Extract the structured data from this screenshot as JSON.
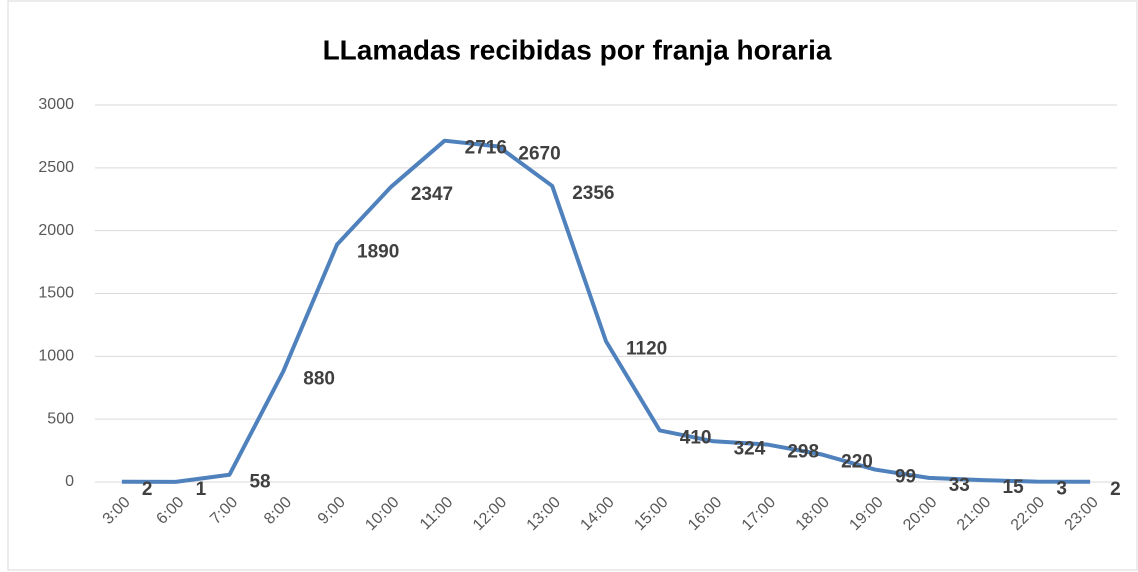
{
  "chart_data": {
    "type": "line",
    "title": "LLamadas recibidas por franja horaria",
    "categories": [
      "3:00",
      "6:00",
      "7:00",
      "8:00",
      "9:00",
      "10:00",
      "11:00",
      "12:00",
      "13:00",
      "14:00",
      "15:00",
      "16:00",
      "17:00",
      "18:00",
      "19:00",
      "20:00",
      "21:00",
      "22:00",
      "23:00"
    ],
    "values": [
      2,
      1,
      58,
      880,
      1890,
      2347,
      2716,
      2670,
      2356,
      1120,
      410,
      324,
      298,
      220,
      99,
      33,
      15,
      3,
      2
    ],
    "color": "#4f81bd",
    "ylim": [
      0,
      3000
    ],
    "yticks": [
      0,
      500,
      1000,
      1500,
      2000,
      2500,
      3000
    ],
    "grid": true
  }
}
